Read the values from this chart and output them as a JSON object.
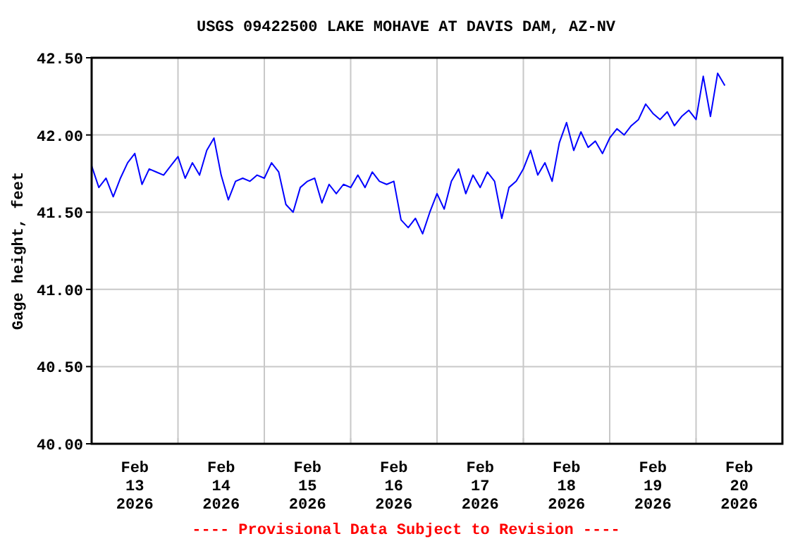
{
  "chart_data": {
    "type": "line",
    "title": "USGS 09422500 LAKE MOHAVE AT DAVIS DAM, AZ-NV",
    "ylabel": "Gage height, feet",
    "annotations": [
      "---- Provisional Data Subject to Revision ----"
    ],
    "x": [
      "2026-02-13T00:00",
      "2026-02-13T02:00",
      "2026-02-13T04:00",
      "2026-02-13T06:00",
      "2026-02-13T08:00",
      "2026-02-13T10:00",
      "2026-02-13T12:00",
      "2026-02-13T14:00",
      "2026-02-13T16:00",
      "2026-02-13T18:00",
      "2026-02-13T20:00",
      "2026-02-13T22:00",
      "2026-02-14T00:00",
      "2026-02-14T02:00",
      "2026-02-14T04:00",
      "2026-02-14T06:00",
      "2026-02-14T08:00",
      "2026-02-14T10:00",
      "2026-02-14T12:00",
      "2026-02-14T14:00",
      "2026-02-14T16:00",
      "2026-02-14T18:00",
      "2026-02-14T20:00",
      "2026-02-14T22:00",
      "2026-02-15T00:00",
      "2026-02-15T02:00",
      "2026-02-15T04:00",
      "2026-02-15T06:00",
      "2026-02-15T08:00",
      "2026-02-15T10:00",
      "2026-02-15T12:00",
      "2026-02-15T14:00",
      "2026-02-15T16:00",
      "2026-02-15T18:00",
      "2026-02-15T20:00",
      "2026-02-15T22:00",
      "2026-02-16T00:00",
      "2026-02-16T02:00",
      "2026-02-16T04:00",
      "2026-02-16T06:00",
      "2026-02-16T08:00",
      "2026-02-16T10:00",
      "2026-02-16T12:00",
      "2026-02-16T14:00",
      "2026-02-16T16:00",
      "2026-02-16T18:00",
      "2026-02-16T20:00",
      "2026-02-16T22:00",
      "2026-02-17T00:00",
      "2026-02-17T02:00",
      "2026-02-17T04:00",
      "2026-02-17T06:00",
      "2026-02-17T08:00",
      "2026-02-17T10:00",
      "2026-02-17T12:00",
      "2026-02-17T14:00",
      "2026-02-17T16:00",
      "2026-02-17T18:00",
      "2026-02-17T20:00",
      "2026-02-17T22:00",
      "2026-02-18T00:00",
      "2026-02-18T02:00",
      "2026-02-18T04:00",
      "2026-02-18T06:00",
      "2026-02-18T08:00",
      "2026-02-18T10:00",
      "2026-02-18T12:00",
      "2026-02-18T14:00",
      "2026-02-18T16:00",
      "2026-02-18T18:00",
      "2026-02-18T20:00",
      "2026-02-18T22:00",
      "2026-02-19T00:00",
      "2026-02-19T02:00",
      "2026-02-19T04:00",
      "2026-02-19T06:00",
      "2026-02-19T08:00",
      "2026-02-19T10:00",
      "2026-02-19T12:00",
      "2026-02-19T14:00",
      "2026-02-19T16:00",
      "2026-02-19T18:00",
      "2026-02-19T20:00",
      "2026-02-19T22:00",
      "2026-02-20T00:00",
      "2026-02-20T02:00",
      "2026-02-20T04:00",
      "2026-02-20T06:00",
      "2026-02-20T08:00"
    ],
    "series": [
      {
        "color": "#0000ff",
        "values": [
          41.8,
          41.66,
          41.72,
          41.6,
          41.72,
          41.82,
          41.88,
          41.68,
          41.78,
          41.76,
          41.74,
          41.8,
          41.86,
          41.72,
          41.82,
          41.74,
          41.9,
          41.98,
          41.74,
          41.58,
          41.7,
          41.72,
          41.7,
          41.74,
          41.72,
          41.82,
          41.76,
          41.55,
          41.5,
          41.66,
          41.7,
          41.72,
          41.56,
          41.68,
          41.62,
          41.68,
          41.66,
          41.74,
          41.66,
          41.76,
          41.7,
          41.68,
          41.7,
          41.45,
          41.4,
          41.46,
          41.36,
          41.5,
          41.62,
          41.52,
          41.7,
          41.78,
          41.62,
          41.74,
          41.66,
          41.76,
          41.7,
          41.46,
          41.66,
          41.7,
          41.78,
          41.9,
          41.74,
          41.82,
          41.7,
          41.95,
          42.08,
          41.9,
          42.02,
          41.92,
          41.96,
          41.88,
          41.98,
          42.04,
          42.0,
          42.06,
          42.1,
          42.2,
          42.14,
          42.1,
          42.15,
          42.06,
          42.12,
          42.16,
          42.1,
          42.38,
          42.12,
          42.4,
          42.32
        ]
      }
    ],
    "xlim": [
      "2026-02-13T00:00",
      "2026-02-21T00:00"
    ],
    "xticks": [
      {
        "value": "2026-02-14T00:00",
        "label": null
      },
      {
        "value": "2026-02-15T00:00",
        "label": null
      },
      {
        "value": "2026-02-16T00:00",
        "label": null
      },
      {
        "value": "2026-02-17T00:00",
        "label": null
      },
      {
        "value": "2026-02-18T00:00",
        "label": null
      },
      {
        "value": "2026-02-19T00:00",
        "label": null
      },
      {
        "value": "2026-02-20T00:00",
        "label": null
      },
      {
        "value": "2026-02-13T12:00",
        "label": "Feb\n13\n2026"
      },
      {
        "value": "2026-02-14T12:00",
        "label": "Feb\n14\n2026"
      },
      {
        "value": "2026-02-15T12:00",
        "label": "Feb\n15\n2026"
      },
      {
        "value": "2026-02-16T12:00",
        "label": "Feb\n16\n2026"
      },
      {
        "value": "2026-02-17T12:00",
        "label": "Feb\n17\n2026"
      },
      {
        "value": "2026-02-18T12:00",
        "label": "Feb\n18\n2026"
      },
      {
        "value": "2026-02-19T12:00",
        "label": "Feb\n19\n2026"
      },
      {
        "value": "2026-02-20T12:00",
        "label": "Feb\n20\n2026"
      }
    ],
    "ylim": [
      40,
      42.5
    ],
    "yticks": [
      {
        "value": 40,
        "label": "40.00"
      },
      {
        "value": 40.5,
        "label": "40.50"
      },
      {
        "value": 41,
        "label": "41.00"
      },
      {
        "value": 41.5,
        "label": "41.50"
      },
      {
        "value": 42,
        "label": "42.00"
      },
      {
        "value": 42.5,
        "label": "42.50"
      }
    ],
    "grid": true,
    "line_style": "solid"
  }
}
